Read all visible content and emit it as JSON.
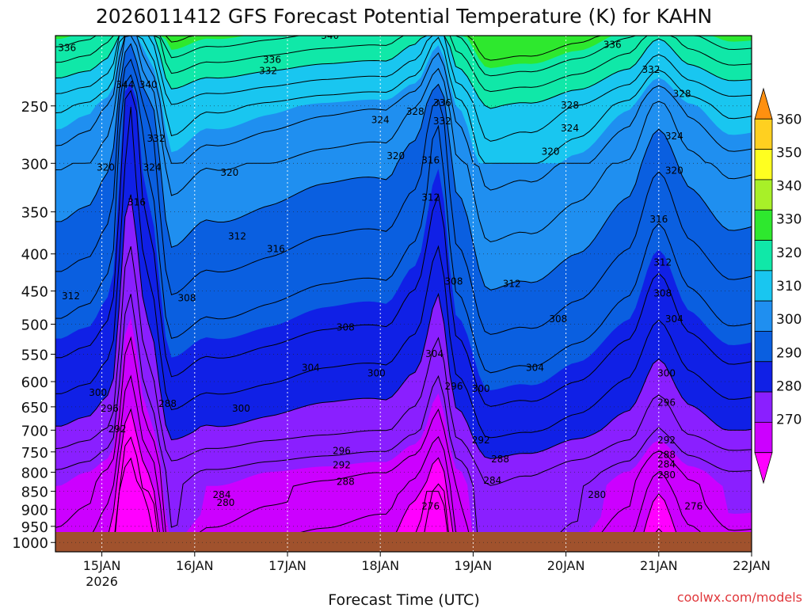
{
  "chart_data": {
    "type": "heatmap",
    "title": "2026011412 GFS Forecast Potential Temperature (K) for KAHN",
    "xlabel": "Forecast Time (UTC)",
    "ylabel": "",
    "credit": "coolwx.com/models",
    "x_ticks": [
      {
        "label": "15JAN",
        "sublabel": "2026",
        "hours": 12
      },
      {
        "label": "16JAN",
        "hours": 36
      },
      {
        "label": "17JAN",
        "hours": 60
      },
      {
        "label": "18JAN",
        "hours": 84
      },
      {
        "label": "19JAN",
        "hours": 108
      },
      {
        "label": "20JAN",
        "hours": 132
      },
      {
        "label": "21JAN",
        "hours": 156
      },
      {
        "label": "22JAN",
        "hours": 180
      }
    ],
    "xlim_hours": [
      0,
      180
    ],
    "y_axis": {
      "scale": "log-pressure",
      "unit": "hPa",
      "ylim": [
        1030,
        200
      ],
      "reversed": true
    },
    "y_ticks": [
      250,
      300,
      350,
      400,
      450,
      500,
      550,
      600,
      650,
      700,
      750,
      800,
      850,
      900,
      950,
      1000
    ],
    "colorbar": {
      "levels": [
        270,
        280,
        290,
        300,
        310,
        320,
        330,
        340,
        350,
        360
      ],
      "colors": [
        "#ff00ff",
        "#cc00ff",
        "#8a1fff",
        "#1020e6",
        "#0a5fe0",
        "#1f8ff0",
        "#19c6f0",
        "#10e8a8",
        "#2ee82e",
        "#a8f028",
        "#ffff20",
        "#ffd020",
        "#ff9010"
      ]
    },
    "contour_labels_sample": [
      {
        "value": 336,
        "hours": 3,
        "p": 210
      },
      {
        "value": 344,
        "hours": 18,
        "p": 236
      },
      {
        "value": 340,
        "hours": 24,
        "p": 236
      },
      {
        "value": 340,
        "hours": 71,
        "p": 202
      },
      {
        "value": 336,
        "hours": 56,
        "p": 218
      },
      {
        "value": 332,
        "hours": 55,
        "p": 226
      },
      {
        "value": 336,
        "hours": 144,
        "p": 208
      },
      {
        "value": 332,
        "hours": 154,
        "p": 225
      },
      {
        "value": 328,
        "hours": 162,
        "p": 243
      },
      {
        "value": 328,
        "hours": 133,
        "p": 252
      },
      {
        "value": 324,
        "hours": 133,
        "p": 271
      },
      {
        "value": 324,
        "hours": 160,
        "p": 278
      },
      {
        "value": 320,
        "hours": 128,
        "p": 292
      },
      {
        "value": 320,
        "hours": 160,
        "p": 310
      },
      {
        "value": 332,
        "hours": 26,
        "p": 280
      },
      {
        "value": 320,
        "hours": 13,
        "p": 307
      },
      {
        "value": 324,
        "hours": 25,
        "p": 307
      },
      {
        "value": 320,
        "hours": 45,
        "p": 312
      },
      {
        "value": 316,
        "hours": 21,
        "p": 343
      },
      {
        "value": 312,
        "hours": 47,
        "p": 382
      },
      {
        "value": 316,
        "hours": 57,
        "p": 398
      },
      {
        "value": 324,
        "hours": 84,
        "p": 264
      },
      {
        "value": 328,
        "hours": 93,
        "p": 257
      },
      {
        "value": 336,
        "hours": 100,
        "p": 250
      },
      {
        "value": 332,
        "hours": 100,
        "p": 265
      },
      {
        "value": 320,
        "hours": 88,
        "p": 296
      },
      {
        "value": 316,
        "hours": 97,
        "p": 300
      },
      {
        "value": 312,
        "hours": 97,
        "p": 338
      },
      {
        "value": 316,
        "hours": 156,
        "p": 362
      },
      {
        "value": 312,
        "hours": 157,
        "p": 415
      },
      {
        "value": 312,
        "hours": 4,
        "p": 462
      },
      {
        "value": 308,
        "hours": 34,
        "p": 465
      },
      {
        "value": 308,
        "hours": 75,
        "p": 510
      },
      {
        "value": 308,
        "hours": 103,
        "p": 441
      },
      {
        "value": 312,
        "hours": 118,
        "p": 444
      },
      {
        "value": 308,
        "hours": 157,
        "p": 458
      },
      {
        "value": 308,
        "hours": 130,
        "p": 497
      },
      {
        "value": 304,
        "hours": 160,
        "p": 497
      },
      {
        "value": 304,
        "hours": 66,
        "p": 580
      },
      {
        "value": 304,
        "hours": 98,
        "p": 555
      },
      {
        "value": 300,
        "hours": 83,
        "p": 590
      },
      {
        "value": 304,
        "hours": 124,
        "p": 580
      },
      {
        "value": 300,
        "hours": 11,
        "p": 628
      },
      {
        "value": 296,
        "hours": 14,
        "p": 660
      },
      {
        "value": 300,
        "hours": 48,
        "p": 660
      },
      {
        "value": 288,
        "hours": 29,
        "p": 650
      },
      {
        "value": 292,
        "hours": 16,
        "p": 705
      },
      {
        "value": 296,
        "hours": 103,
        "p": 615
      },
      {
        "value": 300,
        "hours": 110,
        "p": 620
      },
      {
        "value": 300,
        "hours": 158,
        "p": 590
      },
      {
        "value": 296,
        "hours": 158,
        "p": 648
      },
      {
        "value": 292,
        "hours": 110,
        "p": 730
      },
      {
        "value": 292,
        "hours": 158,
        "p": 730
      },
      {
        "value": 296,
        "hours": 74,
        "p": 755
      },
      {
        "value": 292,
        "hours": 74,
        "p": 790
      },
      {
        "value": 288,
        "hours": 75,
        "p": 833
      },
      {
        "value": 288,
        "hours": 115,
        "p": 775
      },
      {
        "value": 288,
        "hours": 158,
        "p": 765
      },
      {
        "value": 284,
        "hours": 158,
        "p": 788
      },
      {
        "value": 280,
        "hours": 158,
        "p": 815
      },
      {
        "value": 284,
        "hours": 43,
        "p": 868
      },
      {
        "value": 280,
        "hours": 44,
        "p": 890
      },
      {
        "value": 284,
        "hours": 113,
        "p": 830
      },
      {
        "value": 280,
        "hours": 140,
        "p": 868
      },
      {
        "value": 276,
        "hours": 97,
        "p": 900
      },
      {
        "value": 276,
        "hours": 165,
        "p": 900
      }
    ]
  }
}
